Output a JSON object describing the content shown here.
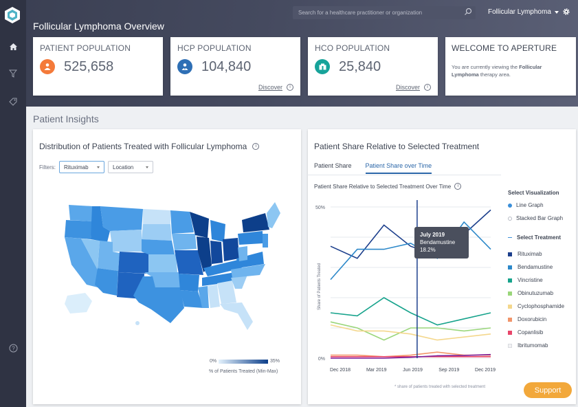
{
  "header": {
    "search_placeholder": "Search for a healthcare practitioner or organization",
    "therapy_area": "Follicular Lymphoma",
    "page_title": "Follicular Lymphoma Overview"
  },
  "kpis": [
    {
      "label": "PATIENT POPULATION",
      "value": "525,658",
      "icon": "person-icon",
      "color": "#f47a3a"
    },
    {
      "label": "HCP POPULATION",
      "value": "104,840",
      "icon": "doctor-icon",
      "color": "#2e6fb5",
      "discover": "Discover"
    },
    {
      "label": "HCO POPULATION",
      "value": "25,840",
      "icon": "hospital-icon",
      "color": "#17a39a",
      "discover": "Discover"
    }
  ],
  "welcome": {
    "title": "WELCOME TO APERTURE",
    "text_before": "You are currently viewing the ",
    "text_bold": "Follicular Lymphoma",
    "text_after": " therapy area."
  },
  "insights": {
    "section_title": "Patient Insights",
    "map_title": "Distribution of Patients Treated with Follicular Lymphoma",
    "filters_label": "Filters:",
    "filter_treatment": "Rituximab",
    "filter_location": "Location",
    "legend_min": "0%",
    "legend_max": "35%",
    "legend_caption": "% of Patients Treated (Min-Max)"
  },
  "share": {
    "title": "Patient Share Relative to Selected Treatment",
    "tabs": [
      "Patient Share",
      "Patient Share over Time"
    ],
    "selected_tab": "Patient Share over Time",
    "chart_title": "Patient Share Relative to Selected Treatment Over Time",
    "select_visualization": "Select Visualization",
    "visualizations": [
      "Line Graph",
      "Stacked Bar Graph"
    ],
    "select_treatment": "Select Treatment",
    "tooltip_date": "July 2019",
    "tooltip_drug": "Bendamustine",
    "tooltip_value": "18.2%",
    "footnote": "* share of patients treated with selected treatment"
  },
  "chart_data": {
    "type": "line",
    "ylabel": "Share of Patients Treated",
    "ylim": [
      0,
      50
    ],
    "y_ticks": [
      "50%",
      "0%"
    ],
    "x_ticks": [
      "Dec 2018",
      "Mar 2019",
      "Jun 2019",
      "Sep 2019",
      "Dec 2019"
    ],
    "x": [
      "Dec 2018",
      "Feb 2019",
      "Apr 2019",
      "Jun 2019",
      "Aug 2019",
      "Oct 2019",
      "Dec 2019"
    ],
    "series": [
      {
        "name": "Rituximab",
        "color": "#1c3f8c",
        "values": [
          37,
          33,
          44,
          37,
          34,
          41,
          49
        ]
      },
      {
        "name": "Bendamustine",
        "color": "#2c88c9",
        "values": [
          26,
          36,
          36,
          38,
          33,
          45,
          36
        ]
      },
      {
        "name": "Vincristine",
        "color": "#17a38c",
        "values": [
          15,
          14,
          20,
          15,
          11,
          13,
          15
        ]
      },
      {
        "name": "Obinutuzumab",
        "color": "#9ad67a",
        "values": [
          12,
          10,
          6,
          10,
          10,
          9,
          10
        ]
      },
      {
        "name": "Cyclophosphamide",
        "color": "#f4d78c",
        "values": [
          11,
          9,
          9,
          8,
          6,
          7,
          8
        ]
      },
      {
        "name": "Doxorubicin",
        "color": "#f1956a",
        "values": [
          1,
          1,
          0.5,
          1,
          2,
          1,
          1
        ]
      },
      {
        "name": "Copanlisib",
        "color": "#e8456a",
        "values": [
          0.5,
          0.5,
          0.5,
          0.5,
          0.5,
          0.5,
          0.5
        ]
      },
      {
        "name": "Ibritumomab",
        "color": "#7a1d9a",
        "values": [
          0,
          0,
          0,
          0.3,
          0.8,
          0.9,
          1.2
        ]
      }
    ],
    "legend_colors_note": "Ibritumomab legend swatch is light",
    "highlight_x": "Jul 2019"
  },
  "support_label": "Support"
}
